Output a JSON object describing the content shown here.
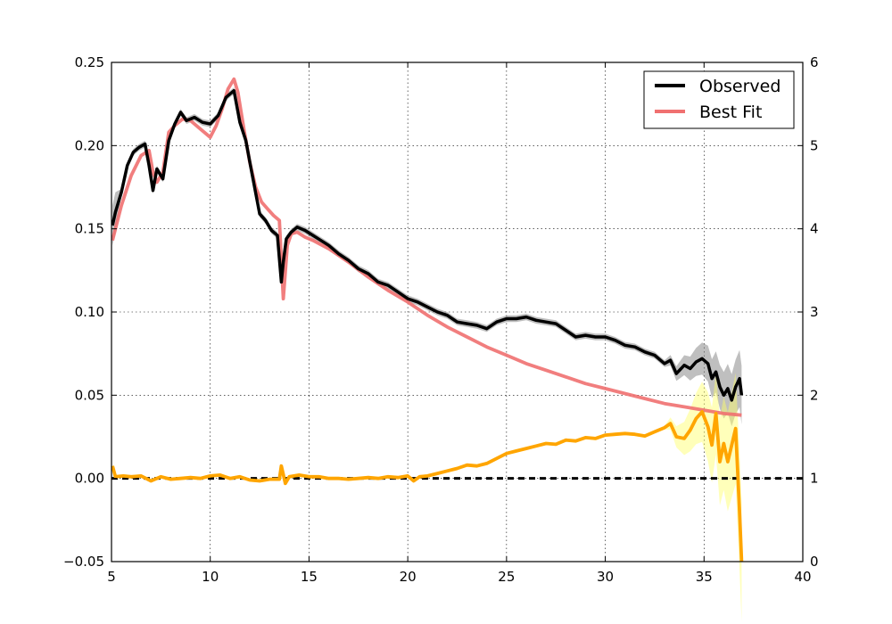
{
  "chart_data": {
    "type": "line",
    "title": "",
    "xlabel": "",
    "ylabel": "",
    "xlim": [
      5,
      40
    ],
    "ylim": [
      -0.05,
      0.25
    ],
    "y2lim": [
      0,
      6
    ],
    "x_ticks": [
      "5",
      "10",
      "15",
      "20",
      "25",
      "30",
      "35",
      "40"
    ],
    "y_ticks": [
      "−0.05",
      "0.00",
      "0.05",
      "0.10",
      "0.15",
      "0.20",
      "0.25"
    ],
    "y2_ticks": [
      "0",
      "1",
      "2",
      "3",
      "4",
      "5",
      "6"
    ],
    "grid": true,
    "legend": {
      "placement": "top-right",
      "entries": [
        {
          "label": "Observed",
          "color": "#000000"
        },
        {
          "label": "Best Fit",
          "color": "#f07070"
        }
      ]
    },
    "series": [
      {
        "name": "Observed",
        "axis": "left",
        "color": "#000000",
        "x": [
          5.05,
          5.2,
          5.5,
          5.8,
          6.1,
          6.4,
          6.7,
          6.9,
          7.1,
          7.3,
          7.6,
          7.9,
          8.2,
          8.5,
          8.8,
          9.2,
          9.6,
          10.0,
          10.4,
          10.8,
          11.2,
          11.5,
          11.8,
          12.1,
          12.5,
          12.8,
          13.1,
          13.4,
          13.6,
          13.7,
          13.85,
          14.1,
          14.4,
          14.8,
          15.2,
          15.6,
          16.0,
          16.5,
          17.0,
          17.5,
          18.0,
          18.5,
          19.0,
          19.5,
          20.0,
          20.5,
          21.0,
          21.5,
          22.0,
          22.5,
          23.0,
          23.5,
          24.0,
          24.5,
          25.0,
          25.5,
          26.0,
          26.5,
          27.0,
          27.5,
          28.0,
          28.5,
          29.0,
          29.5,
          30.0,
          30.5,
          31.0,
          31.5,
          32.0,
          32.5,
          33.0,
          33.3,
          33.6,
          34.0,
          34.3,
          34.6,
          34.9,
          35.2,
          35.4,
          35.6,
          35.8,
          36.0,
          36.2,
          36.4,
          36.6,
          36.8,
          36.9
        ],
        "values": [
          0.152,
          0.16,
          0.172,
          0.188,
          0.196,
          0.199,
          0.201,
          0.188,
          0.173,
          0.186,
          0.18,
          0.203,
          0.213,
          0.22,
          0.215,
          0.217,
          0.214,
          0.213,
          0.218,
          0.229,
          0.233,
          0.214,
          0.203,
          0.184,
          0.159,
          0.155,
          0.149,
          0.146,
          0.118,
          0.13,
          0.144,
          0.148,
          0.151,
          0.149,
          0.146,
          0.143,
          0.14,
          0.135,
          0.131,
          0.126,
          0.123,
          0.118,
          0.116,
          0.112,
          0.108,
          0.106,
          0.103,
          0.1,
          0.098,
          0.094,
          0.093,
          0.092,
          0.09,
          0.094,
          0.096,
          0.096,
          0.097,
          0.095,
          0.094,
          0.093,
          0.089,
          0.085,
          0.086,
          0.085,
          0.085,
          0.083,
          0.08,
          0.079,
          0.076,
          0.074,
          0.069,
          0.071,
          0.063,
          0.068,
          0.066,
          0.07,
          0.072,
          0.069,
          0.06,
          0.064,
          0.055,
          0.05,
          0.054,
          0.047,
          0.055,
          0.06,
          0.05
        ]
      },
      {
        "name": "Best Fit",
        "axis": "left",
        "color": "#f07070",
        "x": [
          5.05,
          5.5,
          6.0,
          6.5,
          6.9,
          7.1,
          7.3,
          7.6,
          7.9,
          8.2,
          8.6,
          9.0,
          9.5,
          10.0,
          10.3,
          10.6,
          10.9,
          11.2,
          11.4,
          11.7,
          12.0,
          12.3,
          12.6,
          12.9,
          13.2,
          13.5,
          13.7,
          13.9,
          14.1,
          14.4,
          14.8,
          15.2,
          16.0,
          17.0,
          18.0,
          19.0,
          20.0,
          21.0,
          22.0,
          23.0,
          24.0,
          25.0,
          26.0,
          27.0,
          28.0,
          29.0,
          30.0,
          31.0,
          32.0,
          33.0,
          34.0,
          35.0,
          36.0,
          36.9
        ],
        "values": [
          0.143,
          0.164,
          0.182,
          0.194,
          0.197,
          0.184,
          0.178,
          0.184,
          0.208,
          0.212,
          0.216,
          0.215,
          0.21,
          0.205,
          0.212,
          0.222,
          0.234,
          0.24,
          0.232,
          0.21,
          0.19,
          0.175,
          0.166,
          0.162,
          0.158,
          0.155,
          0.108,
          0.14,
          0.147,
          0.148,
          0.145,
          0.143,
          0.138,
          0.13,
          0.121,
          0.113,
          0.106,
          0.098,
          0.091,
          0.085,
          0.079,
          0.074,
          0.069,
          0.065,
          0.061,
          0.057,
          0.054,
          0.051,
          0.048,
          0.045,
          0.043,
          0.041,
          0.039,
          0.038
        ]
      },
      {
        "name": "",
        "axis": "right",
        "color": "#ffa500",
        "x": [
          5.05,
          5.2,
          5.6,
          6.0,
          6.5,
          7.0,
          7.5,
          8.0,
          8.5,
          9.0,
          9.5,
          10.0,
          10.5,
          11.0,
          11.5,
          12.0,
          12.5,
          13.0,
          13.5,
          13.6,
          13.8,
          14.0,
          14.5,
          15.0,
          15.5,
          16.0,
          16.5,
          17.0,
          17.5,
          18.0,
          18.5,
          19.0,
          19.5,
          20.0,
          20.3,
          20.6,
          21.0,
          21.5,
          22.0,
          22.5,
          23.0,
          23.5,
          24.0,
          24.5,
          25.0,
          25.5,
          26.0,
          26.5,
          27.0,
          27.5,
          28.0,
          28.5,
          29.0,
          29.5,
          30.0,
          30.5,
          31.0,
          31.5,
          32.0,
          32.5,
          33.0,
          33.3,
          33.6,
          34.0,
          34.3,
          34.6,
          34.9,
          35.2,
          35.4,
          35.6,
          35.8,
          36.0,
          36.2,
          36.4,
          36.6,
          36.8,
          36.9
        ],
        "values": [
          1.15,
          1.02,
          1.03,
          1.02,
          1.03,
          0.97,
          1.02,
          0.99,
          1.0,
          1.01,
          1.0,
          1.03,
          1.04,
          1.0,
          1.02,
          0.98,
          0.97,
          0.99,
          0.99,
          1.15,
          0.94,
          1.02,
          1.04,
          1.02,
          1.02,
          1.0,
          1.0,
          0.99,
          1.0,
          1.01,
          1.0,
          1.02,
          1.01,
          1.03,
          0.97,
          1.02,
          1.03,
          1.06,
          1.09,
          1.12,
          1.16,
          1.15,
          1.18,
          1.24,
          1.3,
          1.33,
          1.36,
          1.39,
          1.42,
          1.41,
          1.46,
          1.45,
          1.49,
          1.48,
          1.52,
          1.53,
          1.54,
          1.53,
          1.51,
          1.56,
          1.61,
          1.66,
          1.5,
          1.48,
          1.58,
          1.72,
          1.8,
          1.62,
          1.4,
          1.78,
          1.2,
          1.42,
          1.2,
          1.4,
          1.6,
          0.6,
          0.0
        ]
      }
    ]
  }
}
